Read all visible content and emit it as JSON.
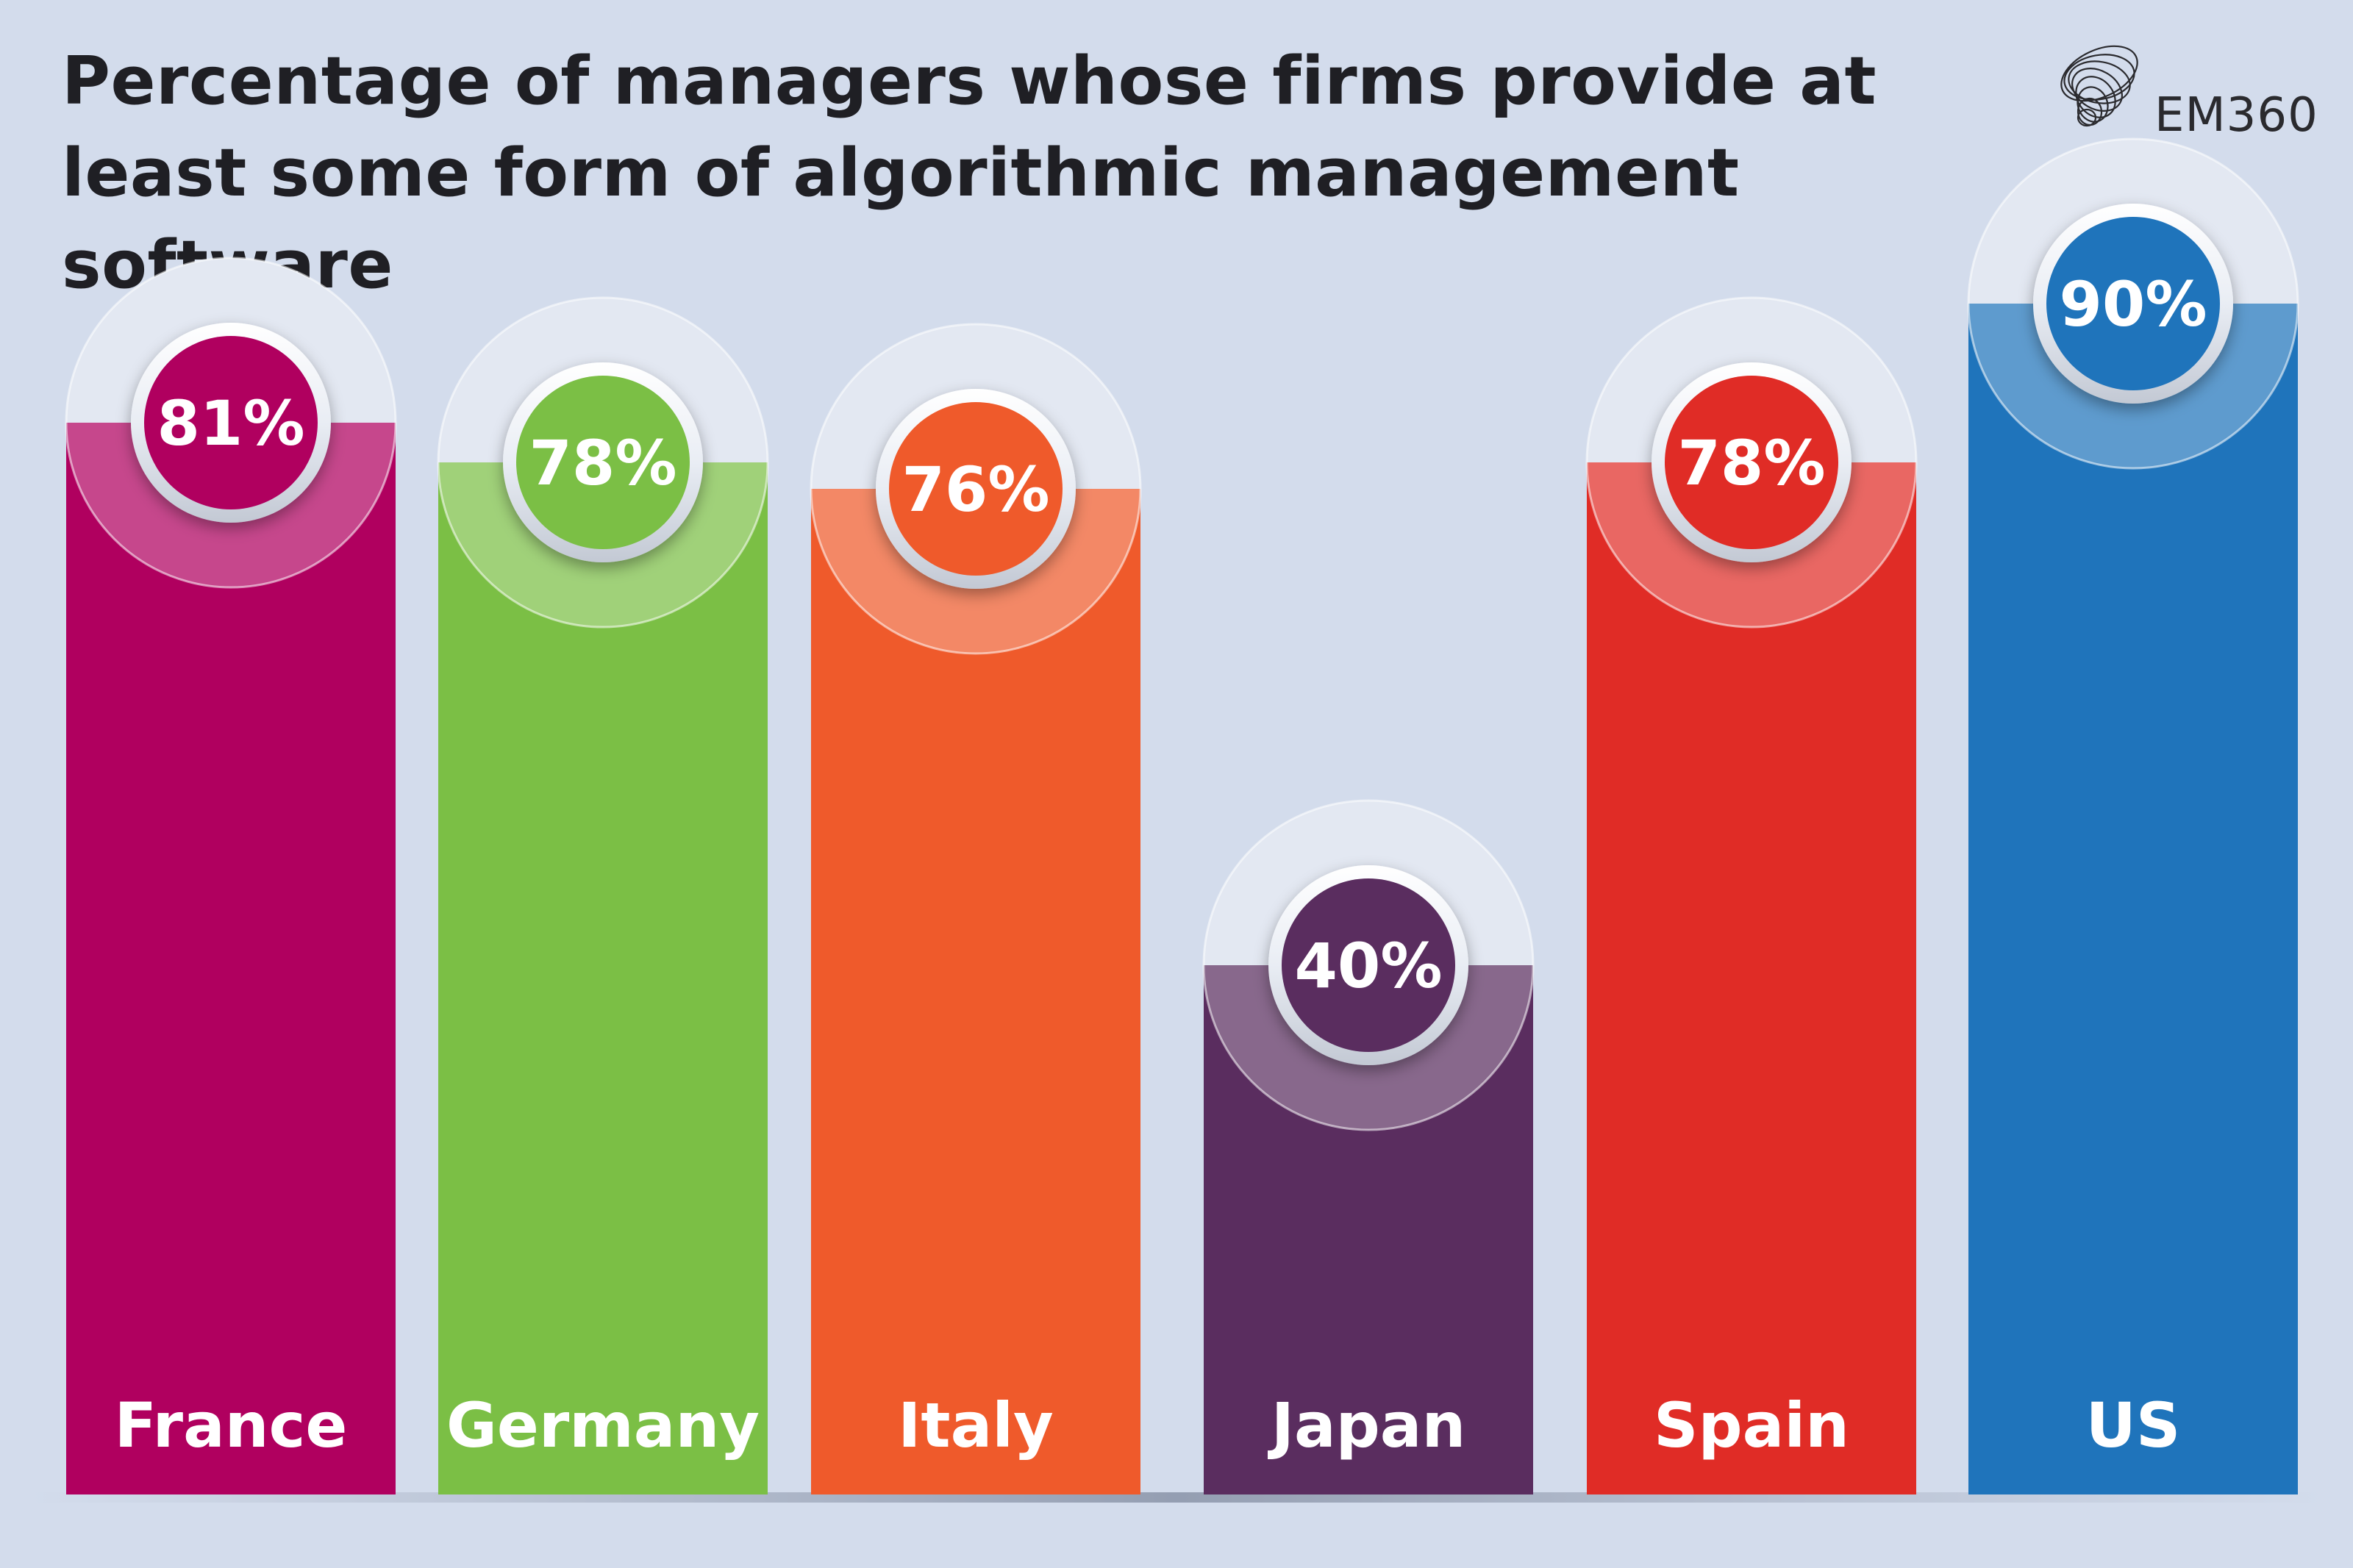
{
  "chart_data": {
    "type": "bar",
    "title": "Percentage of managers whose firms provide at least some form of algorithmic management software",
    "categories": [
      "France",
      "Germany",
      "Italy",
      "Japan",
      "Spain",
      "US"
    ],
    "values": [
      81,
      78,
      76,
      40,
      78,
      90
    ],
    "value_labels": [
      "81%",
      "78%",
      "76%",
      "40%",
      "78%",
      "90%"
    ],
    "unit": "%",
    "colors": [
      "#b0005f",
      "#7bbf45",
      "#ef5a2b",
      "#5a2d5f",
      "#e02c26",
      "#1f74bb"
    ],
    "ylim": [
      0,
      100
    ],
    "grid": false,
    "legend": "none"
  },
  "logo": {
    "text": "EM360"
  },
  "colors": {
    "background": "#d3dcec",
    "title": "#1f1f24"
  }
}
